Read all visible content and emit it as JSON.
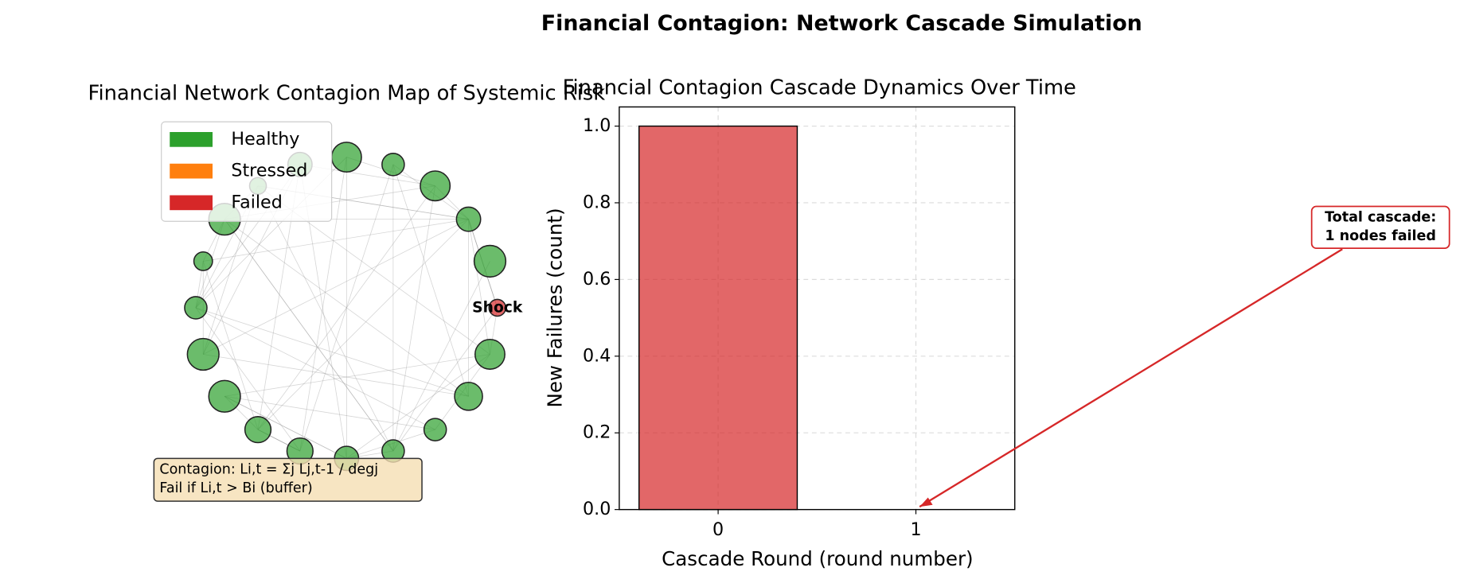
{
  "chart_data": [
    {
      "type": "network",
      "title": "Financial Network Contagion Map of Systemic Risk",
      "legend": [
        {
          "name": "Healthy",
          "color": "#2ca02c"
        },
        {
          "name": "Stressed",
          "color": "#ff7f0e"
        },
        {
          "name": "Failed",
          "color": "#d62728"
        }
      ],
      "node_label": "Shock",
      "formula": [
        "Contagion: Li,t = Σj Lj,t-1 / degj",
        "Fail if Li,t > Bi (buffer)"
      ]
    },
    {
      "type": "bar",
      "suptitle": "Financial Contagion: Network Cascade Simulation",
      "title": "Financial Contagion Cascade Dynamics Over Time",
      "xlabel": "Cascade Round (round number)",
      "ylabel": "New Failures (count)",
      "categories": [
        "0",
        "1"
      ],
      "values": [
        1,
        0
      ],
      "color": "#d62728",
      "ylim": [
        0,
        1.05
      ],
      "yticks": [
        {
          "value": 0,
          "label": "0.0"
        },
        {
          "value": 0.2,
          "label": "0.2"
        },
        {
          "value": 0.4,
          "label": "0.4"
        },
        {
          "value": 0.6,
          "label": "0.6"
        },
        {
          "value": 0.8,
          "label": "0.8"
        },
        {
          "value": 1.0,
          "label": "1.0"
        }
      ],
      "grid": true,
      "annotation": [
        "Total cascade:",
        "1 nodes failed"
      ]
    }
  ]
}
